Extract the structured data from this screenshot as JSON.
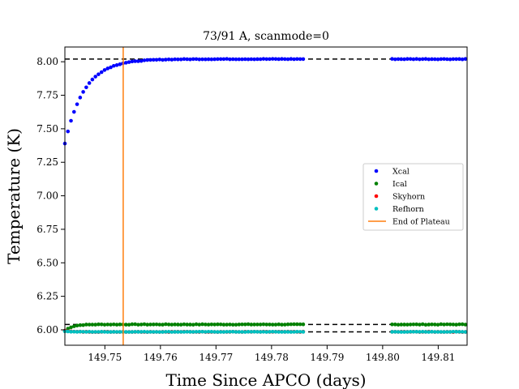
{
  "chart_data": {
    "type": "scatter",
    "title": "73/91 A, scanmode=0",
    "xlabel": "Time Since APCO (days)",
    "ylabel": "Temperature (K)",
    "xlim": [
      149.7428,
      149.8152
    ],
    "ylim": [
      5.885,
      8.11
    ],
    "xticks": [
      149.75,
      149.76,
      149.77,
      149.78,
      149.79,
      149.8,
      149.81
    ],
    "xtick_labels": [
      "149.75",
      "149.76",
      "149.77",
      "149.78",
      "149.79",
      "149.80",
      "149.81"
    ],
    "yticks": [
      6.0,
      6.25,
      6.5,
      6.75,
      7.0,
      7.25,
      7.5,
      7.75,
      8.0
    ],
    "ytick_labels": [
      "6.00",
      "6.25",
      "6.50",
      "6.75",
      "7.00",
      "7.25",
      "7.50",
      "7.75",
      "8.00"
    ],
    "grid": false,
    "legend_position": "center-right",
    "segments": [
      [
        149.7428,
        149.7862
      ],
      [
        149.8017,
        149.8152
      ]
    ],
    "sample_step_days": 0.00055,
    "series": [
      {
        "name": "Xcal",
        "color": "#0000ff",
        "marker": "dot",
        "plateau": 8.02,
        "start": 7.39,
        "tau_days": 0.0035,
        "jitter": 0.002
      },
      {
        "name": "Ical",
        "color": "#008000",
        "marker": "dot",
        "plateau": 6.04,
        "start": 5.99,
        "tau_days": 0.0012,
        "jitter": 0.002
      },
      {
        "name": "Skyhorn",
        "color": "#ff0000",
        "marker": "dot",
        "plateau": 5.985,
        "start": 5.995,
        "tau_days": 0.0008,
        "jitter": 0.0015
      },
      {
        "name": "Refhorn",
        "color": "#00bfbf",
        "marker": "dot",
        "plateau": 5.985,
        "start": 5.99,
        "tau_days": 0.0008,
        "jitter": 0.001
      }
    ],
    "reference_lines": [
      {
        "y": 8.02,
        "style": "dashed",
        "color": "#000000"
      },
      {
        "y": 6.04,
        "style": "dashed",
        "color": "#000000"
      },
      {
        "y": 5.985,
        "style": "dashed",
        "color": "#000000"
      }
    ],
    "vertical_line": {
      "name": "End of Plateau",
      "x": 149.7533,
      "color": "#ff7f0e"
    }
  }
}
